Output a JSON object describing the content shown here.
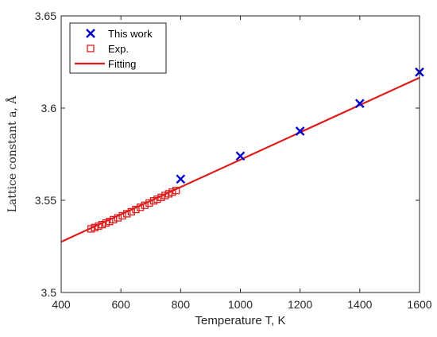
{
  "chart_data": {
    "type": "scatter",
    "xlabel": "Temperature T, K",
    "ylabel": "Lattice constant a, Å",
    "xlim": [
      400,
      1600
    ],
    "ylim": [
      3.5,
      3.65
    ],
    "xticks": [
      400,
      600,
      800,
      1000,
      1200,
      1400,
      1600
    ],
    "xtick_labels": [
      "400",
      "600",
      "800",
      "1000",
      "1200",
      "1400",
      "1600"
    ],
    "yticks": [
      3.5,
      3.55,
      3.6,
      3.65
    ],
    "ytick_labels": [
      "3.5",
      "3.55",
      "3.6",
      "3.65"
    ],
    "grid": false,
    "legend_position": "top-left",
    "series": [
      {
        "name": "This work",
        "marker": "x",
        "color": "#0000cc",
        "x": [
          800,
          1000,
          1200,
          1400,
          1600
        ],
        "y": [
          3.5615,
          3.574,
          3.5875,
          3.6025,
          3.6195
        ]
      },
      {
        "name": "Exp.",
        "marker": "square-open",
        "color": "#dd1c1c",
        "x": [
          500,
          512,
          525,
          537,
          550,
          562,
          575,
          590,
          605,
          620,
          635,
          650,
          665,
          680,
          695,
          710,
          722,
          735,
          748,
          760,
          772,
          785
        ],
        "y": [
          3.5345,
          3.5352,
          3.536,
          3.5368,
          3.5377,
          3.5385,
          3.5395,
          3.5405,
          3.5416,
          3.5427,
          3.5438,
          3.545,
          3.5462,
          3.5473,
          3.5485,
          3.5497,
          3.5506,
          3.5516,
          3.5526,
          3.5535,
          3.5544,
          3.5553
        ]
      },
      {
        "name": "Fitting",
        "marker": "line",
        "color": "#dd1c1c",
        "x": [
          400,
          1600
        ],
        "y": [
          3.5275,
          3.6165
        ]
      }
    ]
  }
}
